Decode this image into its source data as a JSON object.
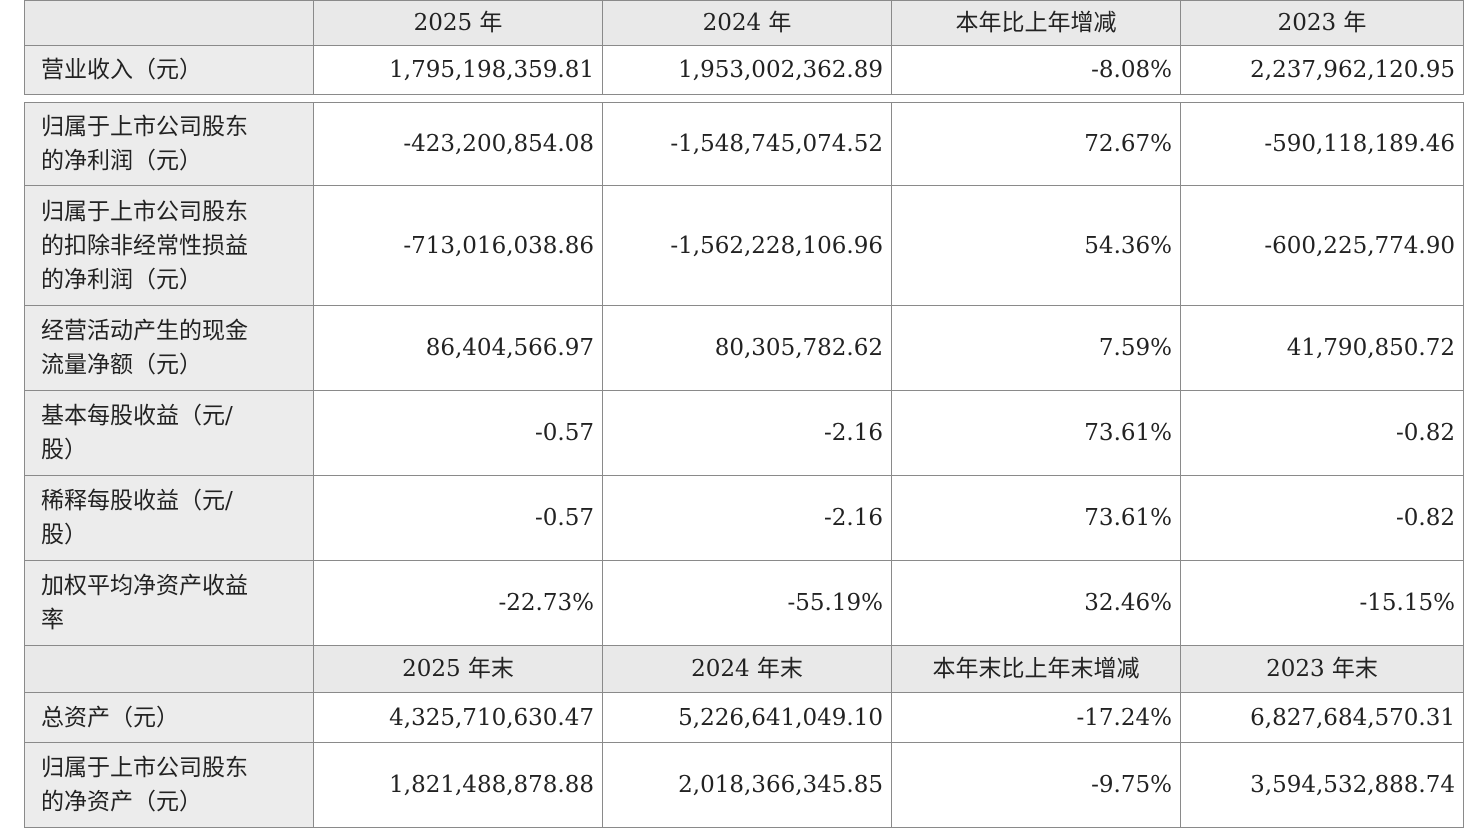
{
  "blocks": [
    {
      "header": [
        "2025 年",
        "2024 年",
        "本年比上年增减",
        "2023 年"
      ],
      "rows": [
        {
          "label": [
            "营业收入（元）"
          ],
          "cells": [
            "1,795,198,359.81",
            "1,953,002,362.89",
            "-8.08%",
            "2,237,962,120.95"
          ]
        }
      ]
    },
    {
      "rows": [
        {
          "label": [
            "归属于上市公司股东",
            "的净利润（元）"
          ],
          "cells": [
            "-423,200,854.08",
            "-1,548,745,074.52",
            "72.67%",
            "-590,118,189.46"
          ]
        },
        {
          "label": [
            "归属于上市公司股东",
            "的扣除非经常性损益",
            "的净利润（元）"
          ],
          "cells": [
            "-713,016,038.86",
            "-1,562,228,106.96",
            "54.36%",
            "-600,225,774.90"
          ]
        },
        {
          "label": [
            "经营活动产生的现金",
            "流量净额（元）"
          ],
          "cells": [
            "86,404,566.97",
            "80,305,782.62",
            "7.59%",
            "41,790,850.72"
          ]
        },
        {
          "label": [
            "基本每股收益（元/",
            "股）"
          ],
          "cells": [
            "-0.57",
            "-2.16",
            "73.61%",
            "-0.82"
          ]
        },
        {
          "label": [
            "稀释每股收益（元/",
            "股）"
          ],
          "cells": [
            "-0.57",
            "-2.16",
            "73.61%",
            "-0.82"
          ]
        },
        {
          "label": [
            "加权平均净资产收益",
            "率"
          ],
          "cells": [
            "-22.73%",
            "-55.19%",
            "32.46%",
            "-15.15%"
          ]
        }
      ]
    },
    {
      "header": [
        "2025 年末",
        "2024 年末",
        "本年末比上年末增减",
        "2023 年末"
      ],
      "rows": [
        {
          "label": [
            "总资产（元）"
          ],
          "cells": [
            "4,325,710,630.47",
            "5,226,641,049.10",
            "-17.24%",
            "6,827,684,570.31"
          ]
        },
        {
          "label": [
            "归属于上市公司股东",
            "的净资产（元）"
          ],
          "cells": [
            "1,821,488,878.88",
            "2,018,366,345.85",
            "-9.75%",
            "3,594,532,888.74"
          ]
        }
      ]
    }
  ]
}
